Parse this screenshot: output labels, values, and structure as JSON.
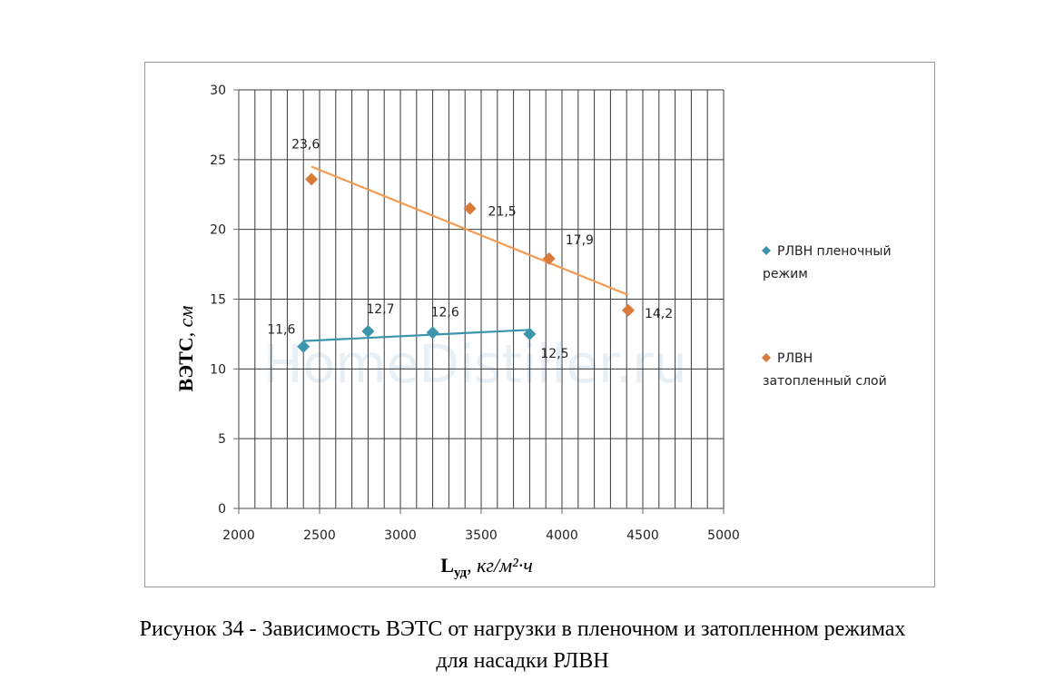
{
  "chart_data": {
    "type": "scatter",
    "title": "",
    "ylabel": "ВЭТС, см",
    "xlabel": "Lуд, кг/м²·ч",
    "xlim": [
      2000,
      5000
    ],
    "ylim": [
      0,
      30
    ],
    "x_ticks": [
      2000,
      2500,
      3000,
      3500,
      4000,
      4500,
      5000
    ],
    "y_ticks": [
      0,
      5,
      10,
      15,
      20,
      25,
      30
    ],
    "grid": true,
    "legend_position": "right",
    "series": [
      {
        "name": "РЛВН пленочный режим",
        "color": "#3d95ad",
        "marker": "diamond",
        "points": [
          {
            "x": 2400,
            "y": 11.6,
            "label": "11,6"
          },
          {
            "x": 2800,
            "y": 12.7,
            "label": "12,7"
          },
          {
            "x": 3200,
            "y": 12.6,
            "label": "12,6"
          },
          {
            "x": 3800,
            "y": 12.5,
            "label": "12,5"
          }
        ],
        "trendline": {
          "color": "#3d95ad",
          "from": {
            "x": 2400,
            "y": 12.0
          },
          "to": {
            "x": 3800,
            "y": 12.8
          }
        }
      },
      {
        "name": "РЛВН затопленный слой",
        "color": "#d97a3a",
        "marker": "diamond",
        "points": [
          {
            "x": 2450,
            "y": 23.6,
            "label": "23,6"
          },
          {
            "x": 3430,
            "y": 21.5,
            "label": "21,5"
          },
          {
            "x": 3920,
            "y": 17.9,
            "label": "17,9"
          },
          {
            "x": 4410,
            "y": 14.2,
            "label": "14,2"
          }
        ],
        "trendline": {
          "color": "#f59a4f",
          "from": {
            "x": 2450,
            "y": 24.5
          },
          "to": {
            "x": 4410,
            "y": 15.3
          }
        }
      }
    ],
    "legend_lines": [
      [
        "РЛВН пленочный",
        "режим"
      ],
      [
        "РЛВН",
        "затопленный слой"
      ]
    ]
  },
  "watermark": "HomeDistiller.ru",
  "caption": {
    "line1": "Рисунок 34 - Зависимость ВЭТС от нагрузки в пленочном и затопленном режимах",
    "line2": "для насадки РЛВН"
  }
}
